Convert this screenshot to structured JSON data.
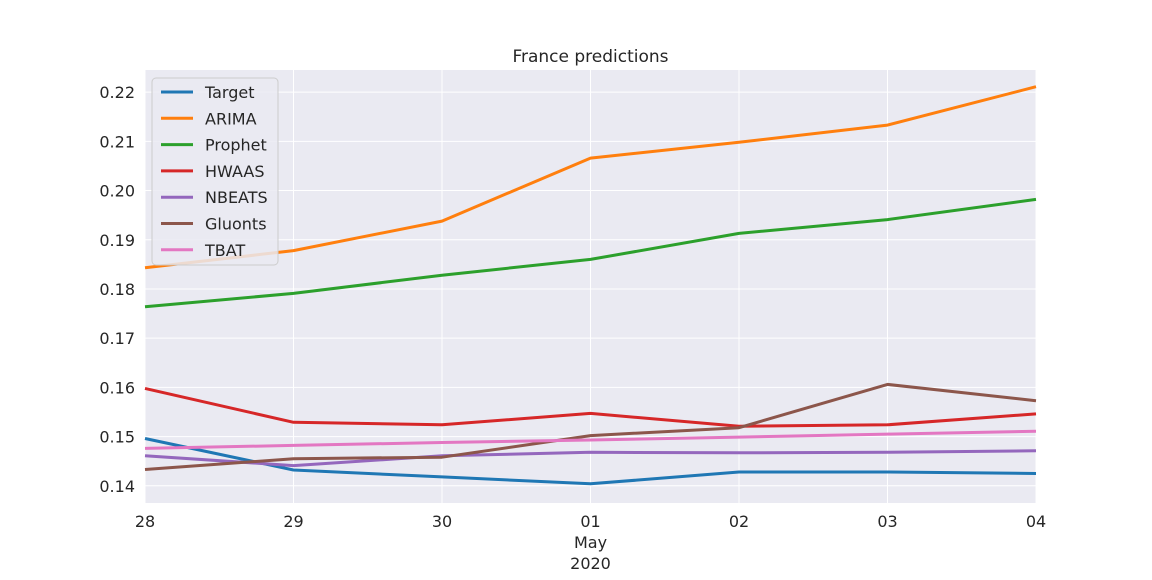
{
  "chart_data": {
    "type": "line",
    "title": "France predictions",
    "xlabel": "",
    "ylabel": "",
    "x": [
      "28",
      "29",
      "30",
      "01",
      "02",
      "03",
      "04"
    ],
    "x_sublabel": [
      "May",
      "2020"
    ],
    "ylim": [
      0.1365,
      0.2245
    ],
    "yticks": [
      0.14,
      0.15,
      0.16,
      0.17,
      0.18,
      0.19,
      0.2,
      0.21,
      0.22
    ],
    "ytick_labels": [
      "0.14",
      "0.15",
      "0.16",
      "0.17",
      "0.18",
      "0.19",
      "0.20",
      "0.21",
      "0.22"
    ],
    "grid": true,
    "legend": "top-left",
    "background": "#eaeaf2",
    "series": [
      {
        "name": "Target",
        "color": "#1f77b4",
        "values": [
          0.1496,
          0.1432,
          0.1418,
          0.1404,
          0.1428,
          0.1428,
          0.1425
        ]
      },
      {
        "name": "ARIMA",
        "color": "#ff7f0e",
        "values": [
          0.1843,
          0.1878,
          0.1938,
          0.2066,
          0.2098,
          0.2133,
          0.2211
        ]
      },
      {
        "name": "Prophet",
        "color": "#2ca02c",
        "values": [
          0.1764,
          0.1791,
          0.1828,
          0.186,
          0.1913,
          0.1941,
          0.1982
        ]
      },
      {
        "name": "HWAAS",
        "color": "#d62728",
        "values": [
          0.1598,
          0.1529,
          0.1524,
          0.1547,
          0.1521,
          0.1524,
          0.1546
        ]
      },
      {
        "name": "NBEATS",
        "color": "#9467bd",
        "values": [
          0.1461,
          0.1441,
          0.1461,
          0.1468,
          0.1467,
          0.1468,
          0.1471
        ]
      },
      {
        "name": "Gluonts",
        "color": "#8c564b",
        "values": [
          0.1433,
          0.1455,
          0.1458,
          0.1502,
          0.1518,
          0.1606,
          0.1573
        ]
      },
      {
        "name": "TBAT",
        "color": "#e377c2",
        "values": [
          0.1476,
          0.1482,
          0.1488,
          0.1493,
          0.1499,
          0.1505,
          0.1511
        ]
      }
    ]
  }
}
